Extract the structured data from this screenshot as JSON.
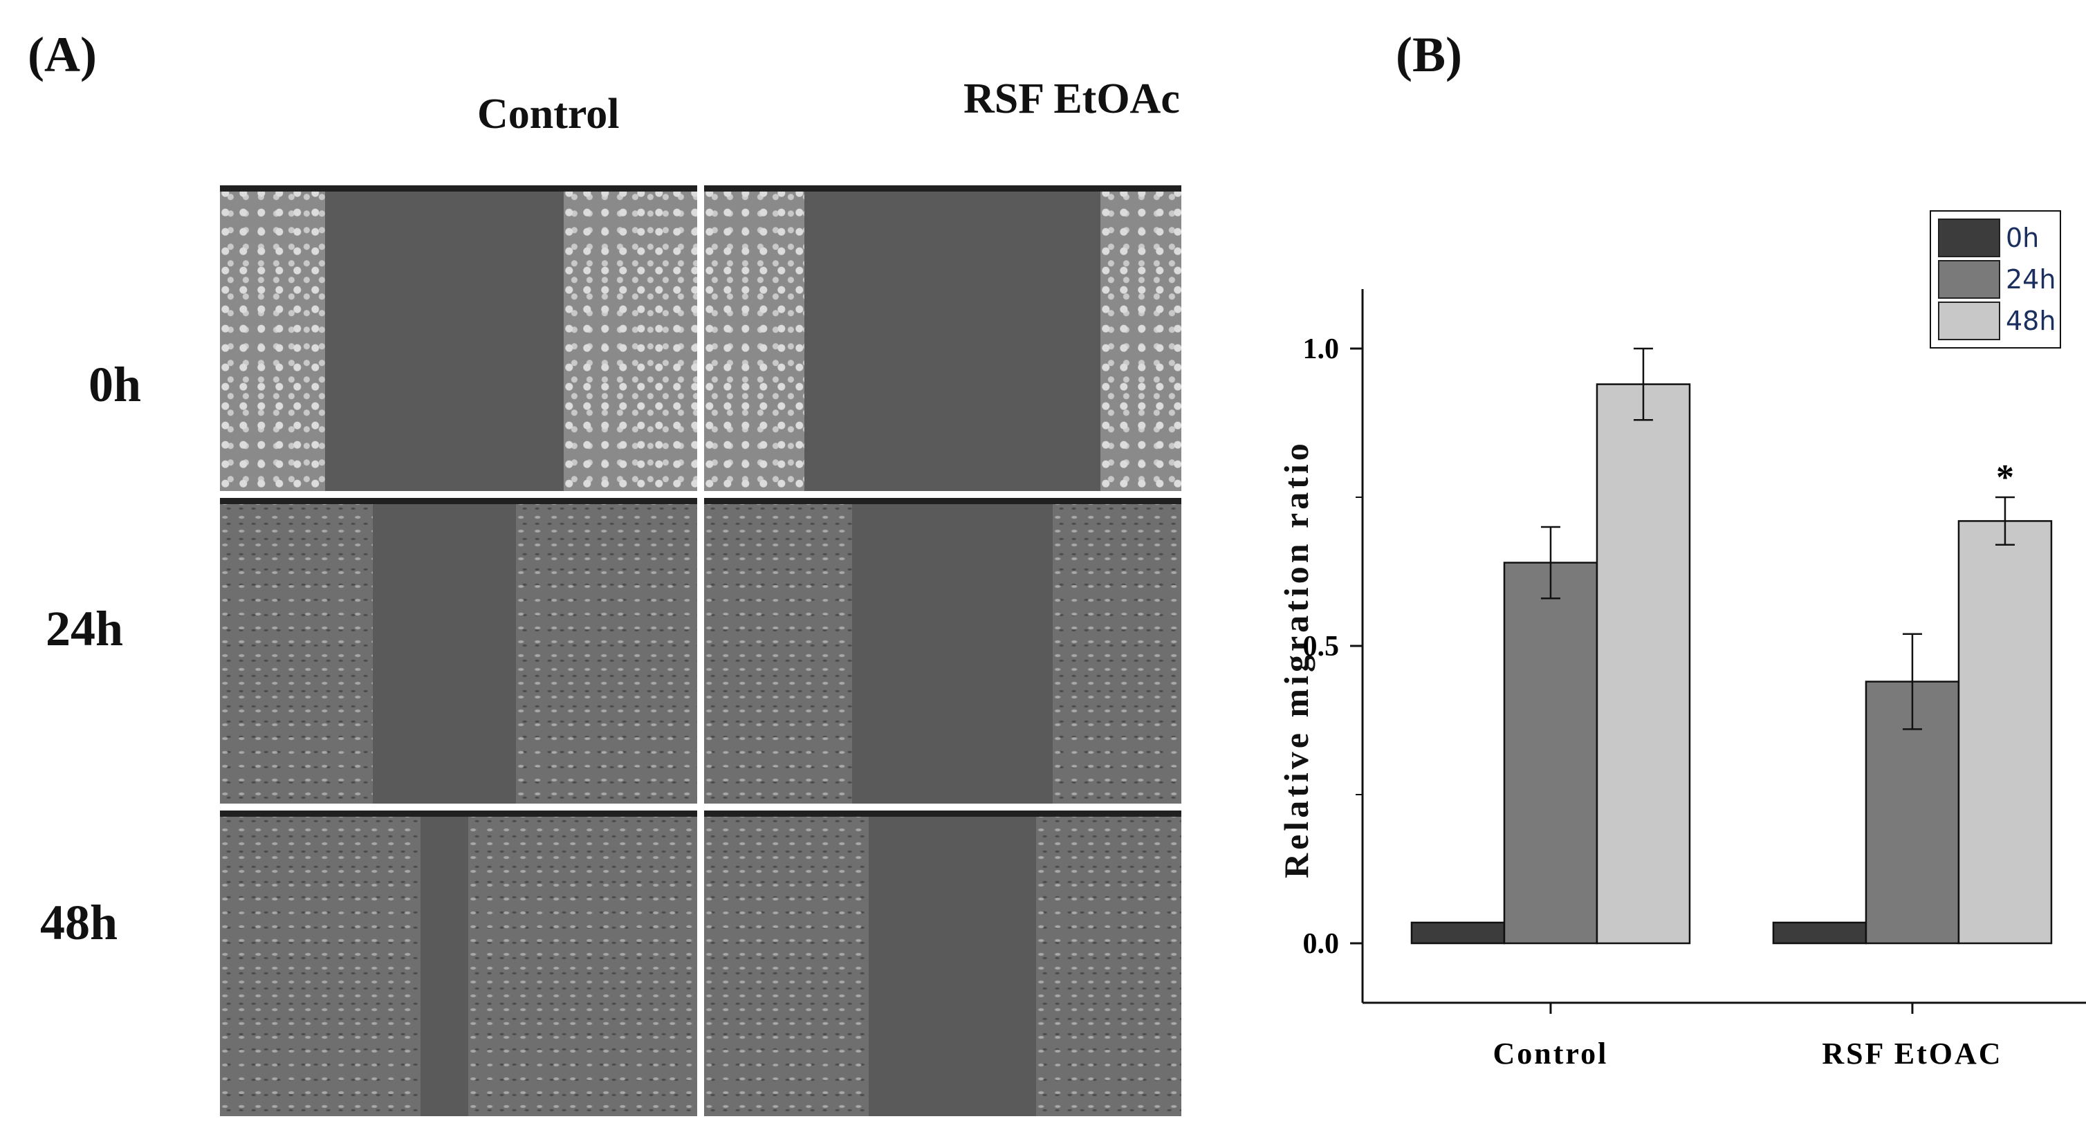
{
  "panels": {
    "a_label": "(A)",
    "b_label": "(B)"
  },
  "microscopy": {
    "columns": [
      "Control",
      "RSF EtOAc"
    ],
    "rows": [
      "0h",
      "24h",
      "48h"
    ],
    "images": [
      {
        "row": "0h",
        "col": "Control",
        "gap_fraction": 0.5
      },
      {
        "row": "0h",
        "col": "RSF EtOAc",
        "gap_fraction": 0.62
      },
      {
        "row": "24h",
        "col": "Control",
        "gap_fraction": 0.3
      },
      {
        "row": "24h",
        "col": "RSF EtOAc",
        "gap_fraction": 0.42
      },
      {
        "row": "48h",
        "col": "Control",
        "gap_fraction": 0.1
      },
      {
        "row": "48h",
        "col": "RSF EtOAc",
        "gap_fraction": 0.35
      }
    ]
  },
  "chart_data": {
    "type": "bar",
    "categories": [
      "Control",
      "RSF EtOAC"
    ],
    "series": [
      {
        "name": "0h",
        "values": [
          0.0,
          0.0
        ],
        "errors": [
          0.0,
          0.0
        ],
        "color": "#3c3c3c"
      },
      {
        "name": "24h",
        "values": [
          0.64,
          0.44
        ],
        "errors": [
          0.06,
          0.08
        ],
        "color": "#7a7a7a"
      },
      {
        "name": "48h",
        "values": [
          0.94,
          0.71
        ],
        "errors": [
          0.06,
          0.04
        ],
        "color": "#c8c8c8"
      }
    ],
    "annotations": [
      {
        "category": "RSF EtOAC",
        "series": "48h",
        "text": "*"
      }
    ],
    "ylabel": "Relative migration ratio",
    "xlabel": "",
    "ylim": [
      -0.1,
      1.1
    ],
    "yticks": [
      "0.0",
      "0.5",
      "1.0"
    ],
    "legend_position": "top-right"
  }
}
